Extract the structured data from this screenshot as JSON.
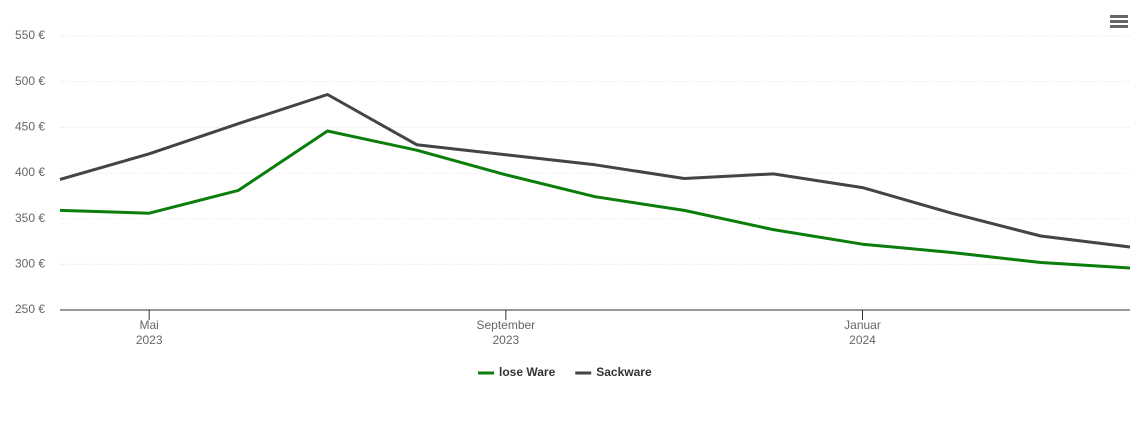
{
  "chart_data": {
    "type": "line",
    "x": [
      "2023-04",
      "2023-05",
      "2023-06",
      "2023-07",
      "2023-08",
      "2023-09",
      "2023-10",
      "2023-11",
      "2023-12",
      "2024-01",
      "2024-02",
      "2024-03",
      "2024-04"
    ],
    "series": [
      {
        "name": "lose Ware",
        "color": "#0a7d0a",
        "values": [
          359,
          356,
          381,
          446,
          425,
          398,
          374,
          359,
          338,
          322,
          313,
          302,
          296
        ]
      },
      {
        "name": "Sackware",
        "color": "#434348",
        "values": [
          393,
          421,
          454,
          486,
          431,
          420,
          409,
          394,
          399,
          384,
          356,
          331,
          319
        ]
      }
    ],
    "xlim": [
      "2023-04",
      "2024-04"
    ],
    "xticks": [
      {
        "value": "2023-05",
        "label": [
          "Mai",
          "2023"
        ]
      },
      {
        "value": "2023-09",
        "label": [
          "September",
          "2023"
        ]
      },
      {
        "value": "2024-01",
        "label": [
          "Januar",
          "2024"
        ]
      }
    ],
    "ylim": [
      250,
      550
    ],
    "yticks": [
      {
        "value": 250,
        "label": "250 €"
      },
      {
        "value": 300,
        "label": "300 €"
      },
      {
        "value": 350,
        "label": "350 €"
      },
      {
        "value": 400,
        "label": "400 €"
      },
      {
        "value": 450,
        "label": "450 €"
      },
      {
        "value": 500,
        "label": "500 €"
      },
      {
        "value": 550,
        "label": "550 €"
      }
    ],
    "grid": true,
    "legend": "bottom"
  }
}
